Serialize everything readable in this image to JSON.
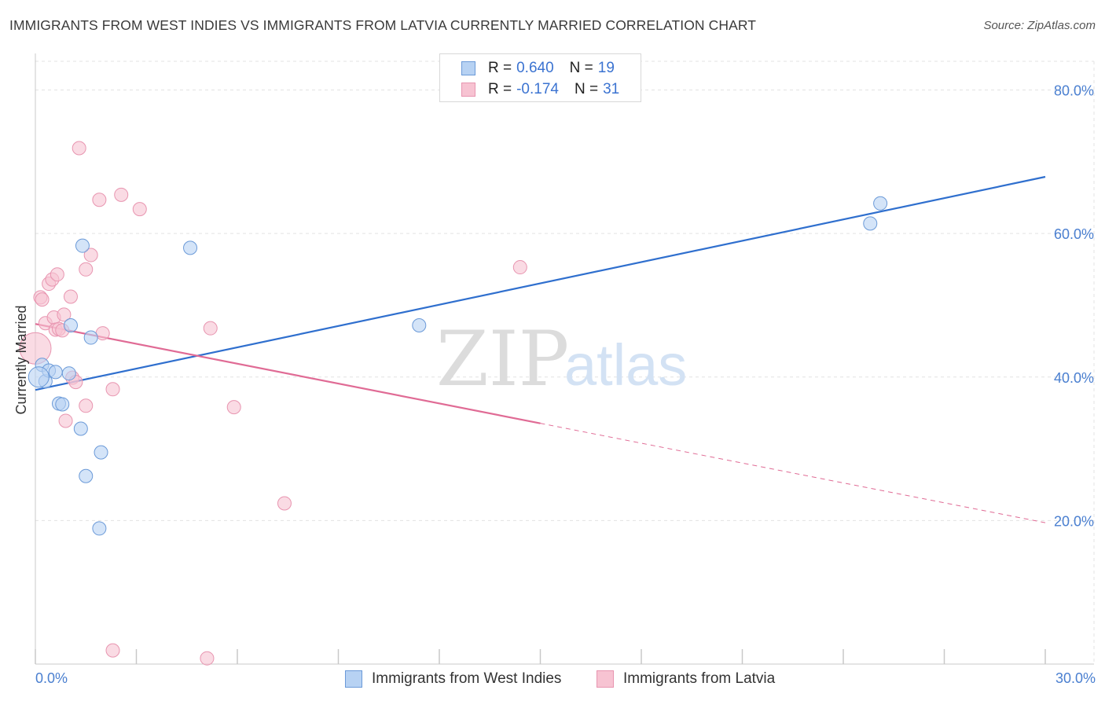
{
  "title": "IMMIGRANTS FROM WEST INDIES VS IMMIGRANTS FROM LATVIA CURRENTLY MARRIED CORRELATION CHART",
  "source": "Source: ZipAtlas.com",
  "watermark": {
    "zip": "ZIP",
    "atlas": "atlas"
  },
  "legend": {
    "rows": [
      {
        "r_label": "R = ",
        "r_value": "0.640",
        "n_label": "N = ",
        "n_value": "19"
      },
      {
        "r_label": "R = ",
        "r_value": "-0.174",
        "n_label": "N = ",
        "n_value": "31"
      }
    ]
  },
  "colors": {
    "west_indies_fill": "#b7d2f3",
    "west_indies_stroke": "#6b9ad8",
    "west_indies_line": "#2f6fce",
    "latvia_fill": "#f7c3d2",
    "latvia_stroke": "#e895b0",
    "latvia_line": "#e06b95",
    "grid": "#e3e3e3",
    "tick_label": "#4a7fd0"
  },
  "chart_data": {
    "type": "scatter",
    "title": "IMMIGRANTS FROM WEST INDIES VS IMMIGRANTS FROM LATVIA CURRENTLY MARRIED CORRELATION CHART",
    "xlabel": "",
    "ylabel": "Currently Married",
    "xlim": [
      0,
      30
    ],
    "ylim": [
      0,
      84
    ],
    "x_tick_labels": [
      "0.0%",
      "30.0%"
    ],
    "y_ticks": [
      20,
      40,
      60,
      80
    ],
    "y_tick_labels": [
      "20.0%",
      "40.0%",
      "60.0%",
      "80.0%"
    ],
    "grid": true,
    "legend_position": "top-center",
    "series": [
      {
        "name": "Immigrants from West Indies",
        "r": 0.64,
        "n": 19,
        "points": [
          [
            0.2,
            41.7
          ],
          [
            0.3,
            39.4
          ],
          [
            0.4,
            40.9
          ],
          [
            0.6,
            40.7
          ],
          [
            0.7,
            36.3
          ],
          [
            0.8,
            36.2
          ],
          [
            1.0,
            40.5
          ],
          [
            1.05,
            47.2
          ],
          [
            1.35,
            32.8
          ],
          [
            1.4,
            58.3
          ],
          [
            1.5,
            26.2
          ],
          [
            1.65,
            45.5
          ],
          [
            1.9,
            18.9
          ],
          [
            1.95,
            29.5
          ],
          [
            4.6,
            58.0
          ],
          [
            11.4,
            47.2
          ],
          [
            24.8,
            61.4
          ],
          [
            25.1,
            64.2
          ],
          [
            0.1,
            40.0
          ]
        ],
        "trend": {
          "x": [
            0,
            30
          ],
          "y": [
            38.2,
            67.9
          ],
          "extrapolated_from_x": null
        }
      },
      {
        "name": "Immigrants from Latvia",
        "r": -0.174,
        "n": 31,
        "points": [
          [
            0.0,
            44.0
          ],
          [
            0.15,
            51.1
          ],
          [
            0.2,
            50.8
          ],
          [
            0.3,
            47.5
          ],
          [
            0.4,
            53.0
          ],
          [
            0.5,
            53.6
          ],
          [
            0.55,
            48.3
          ],
          [
            0.6,
            46.6
          ],
          [
            0.65,
            54.3
          ],
          [
            0.7,
            46.7
          ],
          [
            0.8,
            46.5
          ],
          [
            0.85,
            48.7
          ],
          [
            0.9,
            33.9
          ],
          [
            1.05,
            51.2
          ],
          [
            1.1,
            39.9
          ],
          [
            1.2,
            39.3
          ],
          [
            1.3,
            71.9
          ],
          [
            1.5,
            55.0
          ],
          [
            1.5,
            36.0
          ],
          [
            1.65,
            57.0
          ],
          [
            1.9,
            64.7
          ],
          [
            2.0,
            46.1
          ],
          [
            2.3,
            38.3
          ],
          [
            2.3,
            1.9
          ],
          [
            2.55,
            65.4
          ],
          [
            3.1,
            63.4
          ],
          [
            5.1,
            0.8
          ],
          [
            5.2,
            46.8
          ],
          [
            5.9,
            35.8
          ],
          [
            7.4,
            22.4
          ],
          [
            14.4,
            55.3
          ]
        ],
        "trend": {
          "x": [
            0,
            30
          ],
          "y": [
            47.4,
            19.7
          ],
          "solid_until_x": 15
        }
      }
    ]
  },
  "axis_tick_marks_x": [
    0,
    3,
    6,
    9,
    12,
    15,
    18,
    21,
    24,
    27,
    30
  ],
  "bottom_legend": [
    {
      "label": "Immigrants from West Indies"
    },
    {
      "label": "Immigrants from Latvia"
    }
  ]
}
